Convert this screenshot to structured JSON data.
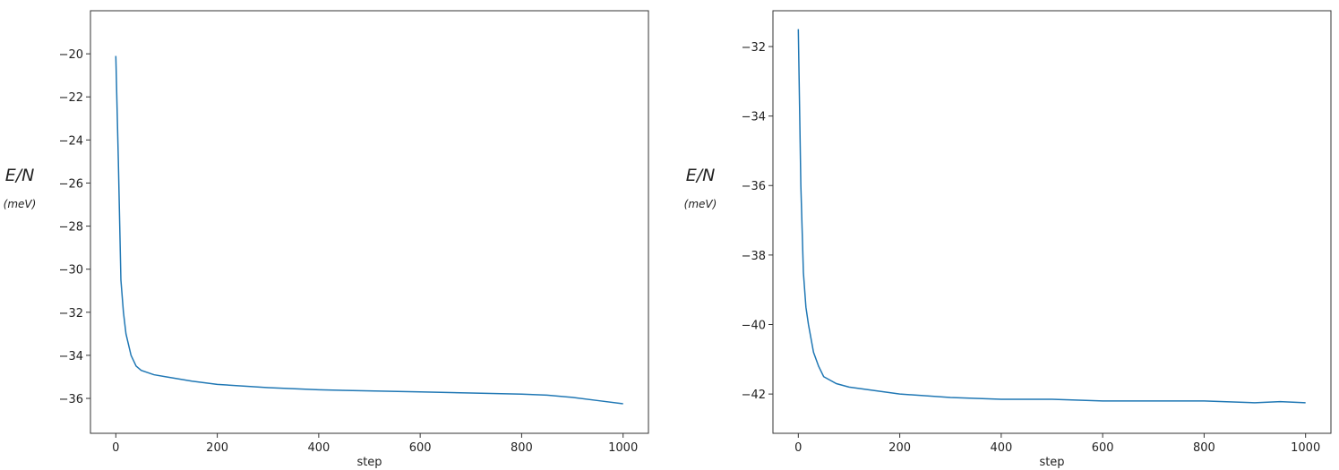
{
  "chart_data": [
    {
      "type": "line",
      "xlabel": "step",
      "ylabel": "E/N",
      "ylabel_unit": "(meV)",
      "x": [
        0,
        5,
        10,
        15,
        20,
        30,
        40,
        50,
        75,
        100,
        150,
        200,
        300,
        400,
        500,
        600,
        700,
        800,
        850,
        900,
        950,
        1000
      ],
      "series": [
        {
          "color": "#1f77b4",
          "values": [
            -20.1,
            -25,
            -30.5,
            -32,
            -33,
            -34,
            -34.5,
            -34.7,
            -34.9,
            -35.0,
            -35.2,
            -35.35,
            -35.5,
            -35.6,
            -35.65,
            -35.7,
            -35.75,
            -35.8,
            -35.85,
            -35.95,
            -36.1,
            -36.25
          ]
        }
      ],
      "xlim": [
        -50,
        1050
      ],
      "ylim": [
        -37.62,
        -18.0
      ],
      "xticks": [
        0,
        200,
        400,
        600,
        800,
        1000
      ],
      "yticks": [
        {
          "value": -36,
          "label": "−36"
        },
        {
          "value": -34,
          "label": "−34"
        },
        {
          "value": -32,
          "label": "−32"
        },
        {
          "value": -30,
          "label": "−30"
        },
        {
          "value": -28,
          "label": "−28"
        },
        {
          "value": -26,
          "label": "−26"
        },
        {
          "value": -24,
          "label": "−24"
        },
        {
          "value": -22,
          "label": "−22"
        },
        {
          "value": -20,
          "label": "−20"
        }
      ]
    },
    {
      "type": "line",
      "xlabel": "step",
      "ylabel": "E/N",
      "ylabel_unit": "(meV)",
      "x": [
        0,
        5,
        10,
        15,
        20,
        30,
        40,
        50,
        75,
        100,
        150,
        200,
        300,
        400,
        500,
        600,
        700,
        800,
        900,
        950,
        1000
      ],
      "series": [
        {
          "color": "#1f77b4",
          "values": [
            -31.5,
            -36,
            -38.5,
            -39.5,
            -40,
            -40.8,
            -41.2,
            -41.5,
            -41.7,
            -41.8,
            -41.9,
            -42.0,
            -42.1,
            -42.15,
            -42.15,
            -42.2,
            -42.2,
            -42.2,
            -42.25,
            -42.22,
            -42.25
          ]
        }
      ],
      "xlim": [
        -50,
        1050
      ],
      "ylim": [
        -43.13,
        -30.97
      ],
      "xticks": [
        0,
        200,
        400,
        600,
        800,
        1000
      ],
      "yticks": [
        {
          "value": -42,
          "label": "−42"
        },
        {
          "value": -40,
          "label": "−40"
        },
        {
          "value": -38,
          "label": "−38"
        },
        {
          "value": -36,
          "label": "−36"
        },
        {
          "value": -34,
          "label": "−34"
        },
        {
          "value": -32,
          "label": "−32"
        }
      ]
    }
  ]
}
